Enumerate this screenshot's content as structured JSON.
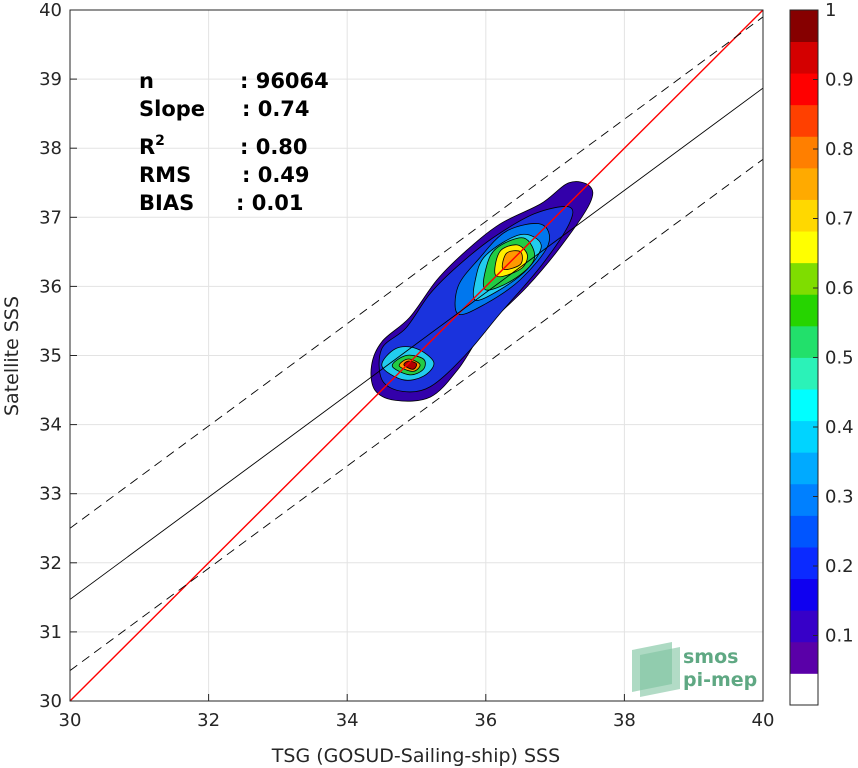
{
  "chart_data": {
    "type": "scatter",
    "xlabel": "TSG (GOSUD-Sailing-ship) SSS",
    "ylabel": "Satellite SSS",
    "xlim": [
      30,
      40
    ],
    "ylim": [
      30,
      40
    ],
    "xticks": [
      "30",
      "32",
      "34",
      "36",
      "38",
      "40"
    ],
    "yticks": [
      "30",
      "31",
      "32",
      "33",
      "34",
      "35",
      "36",
      "37",
      "38",
      "39",
      "40"
    ],
    "grid": true,
    "stats": [
      {
        "label": "n",
        "value": ": 96064"
      },
      {
        "label": "Slope",
        "value": ": 0.74"
      },
      {
        "label": "R²",
        "value": ": 0.80"
      },
      {
        "label": "RMS",
        "value": ": 0.49"
      },
      {
        "label": "BIAS",
        "value": ": 0.01"
      }
    ],
    "lines": {
      "identity": {
        "slope": 1,
        "intercept": 0,
        "color": "#ff0000"
      },
      "regression": {
        "slope": 0.74,
        "x0": 30,
        "y0": 31.47,
        "color": "#000000"
      },
      "upper_bound": {
        "slope": 0.74,
        "x0": 30,
        "y0": 32.5,
        "color": "#000000",
        "dashed": true
      },
      "lower_bound": {
        "slope": 0.74,
        "x0": 30,
        "y0": 30.44,
        "color": "#000000",
        "dashed": true
      }
    },
    "density_contours": [
      {
        "level": 0.05,
        "color": "#3300aa",
        "points": [
          [
            34.4,
            34.5
          ],
          [
            34.7,
            34.35
          ],
          [
            35.2,
            34.4
          ],
          [
            35.6,
            34.8
          ],
          [
            36.0,
            35.4
          ],
          [
            36.6,
            36.0
          ],
          [
            37.1,
            36.6
          ],
          [
            37.5,
            37.2
          ],
          [
            37.5,
            37.45
          ],
          [
            37.2,
            37.5
          ],
          [
            36.8,
            37.2
          ],
          [
            36.2,
            36.9
          ],
          [
            35.7,
            36.5
          ],
          [
            35.3,
            36.1
          ],
          [
            34.9,
            35.55
          ],
          [
            34.5,
            35.2
          ],
          [
            34.35,
            34.85
          ]
        ]
      },
      {
        "level": 0.15,
        "color": "#1a33dd",
        "points": [
          [
            34.5,
            34.65
          ],
          [
            34.8,
            34.48
          ],
          [
            35.2,
            34.55
          ],
          [
            35.7,
            35.0
          ],
          [
            36.2,
            35.6
          ],
          [
            36.8,
            36.3
          ],
          [
            37.2,
            36.9
          ],
          [
            37.2,
            37.15
          ],
          [
            36.7,
            37.05
          ],
          [
            36.1,
            36.7
          ],
          [
            35.6,
            36.3
          ],
          [
            35.2,
            35.9
          ],
          [
            34.85,
            35.4
          ],
          [
            34.5,
            35.1
          ]
        ]
      },
      {
        "level": 0.25,
        "color": "#0077ee",
        "points": [
          [
            35.6,
            35.6
          ],
          [
            36.0,
            35.75
          ],
          [
            36.5,
            36.1
          ],
          [
            36.9,
            36.6
          ],
          [
            36.8,
            36.9
          ],
          [
            36.3,
            36.8
          ],
          [
            35.9,
            36.4
          ],
          [
            35.6,
            36.0
          ]
        ]
      },
      {
        "level": 0.35,
        "color": "#22ccee",
        "points": [
          [
            35.85,
            35.8
          ],
          [
            36.2,
            35.95
          ],
          [
            36.6,
            36.25
          ],
          [
            36.8,
            36.6
          ],
          [
            36.5,
            36.75
          ],
          [
            36.0,
            36.45
          ],
          [
            35.85,
            36.1
          ]
        ]
      },
      {
        "level": 0.55,
        "color": "#22cc44",
        "points": [
          [
            36.0,
            35.95
          ],
          [
            36.4,
            36.1
          ],
          [
            36.7,
            36.4
          ],
          [
            36.55,
            36.7
          ],
          [
            36.15,
            36.55
          ],
          [
            36.0,
            36.25
          ]
        ]
      },
      {
        "level": 0.65,
        "color": "#ffee00",
        "points": [
          [
            36.15,
            36.15
          ],
          [
            36.5,
            36.25
          ],
          [
            36.6,
            36.45
          ],
          [
            36.45,
            36.6
          ],
          [
            36.2,
            36.5
          ]
        ]
      },
      {
        "level": 0.75,
        "color": "#ff9900",
        "points": [
          [
            36.25,
            36.25
          ],
          [
            36.5,
            36.32
          ],
          [
            36.5,
            36.5
          ],
          [
            36.3,
            36.48
          ]
        ]
      },
      {
        "level": 0.35,
        "color": "#22ccee",
        "points": [
          [
            34.5,
            34.85
          ],
          [
            34.8,
            34.65
          ],
          [
            35.1,
            34.7
          ],
          [
            35.25,
            34.9
          ],
          [
            35.0,
            35.1
          ],
          [
            34.7,
            35.1
          ]
        ]
      },
      {
        "level": 0.55,
        "color": "#22cc44",
        "points": [
          [
            34.65,
            34.85
          ],
          [
            34.9,
            34.72
          ],
          [
            35.1,
            34.8
          ],
          [
            35.1,
            34.95
          ],
          [
            34.85,
            35.0
          ]
        ]
      },
      {
        "level": 0.75,
        "color": "#ff9900",
        "points": [
          [
            34.75,
            34.85
          ],
          [
            34.95,
            34.77
          ],
          [
            35.05,
            34.87
          ],
          [
            34.88,
            34.95
          ]
        ]
      },
      {
        "level": 0.95,
        "color": "#b30000",
        "points": [
          [
            34.82,
            34.86
          ],
          [
            34.95,
            34.8
          ],
          [
            35.0,
            34.88
          ],
          [
            34.88,
            34.92
          ]
        ]
      }
    ],
    "colorbar": {
      "min": 0,
      "max": 1,
      "ticks": [
        "0.1",
        "0.2",
        "0.3",
        "0.4",
        "0.5",
        "0.6",
        "0.7",
        "0.8",
        "0.9",
        "1"
      ],
      "colors": [
        "#ffffff",
        "#5a00a8",
        "#3700c8",
        "#0f00f0",
        "#0b2aff",
        "#0055ff",
        "#0080ff",
        "#00aaff",
        "#00d4ff",
        "#00ffff",
        "#2bf2b8",
        "#22e06b",
        "#26d400",
        "#7fdd00",
        "#ffff00",
        "#ffd800",
        "#ffaa00",
        "#ff7f00",
        "#ff4000",
        "#ff0000",
        "#d40000",
        "#860000"
      ]
    }
  },
  "watermark": {
    "line1": "smos",
    "line2": "pi-mep"
  }
}
